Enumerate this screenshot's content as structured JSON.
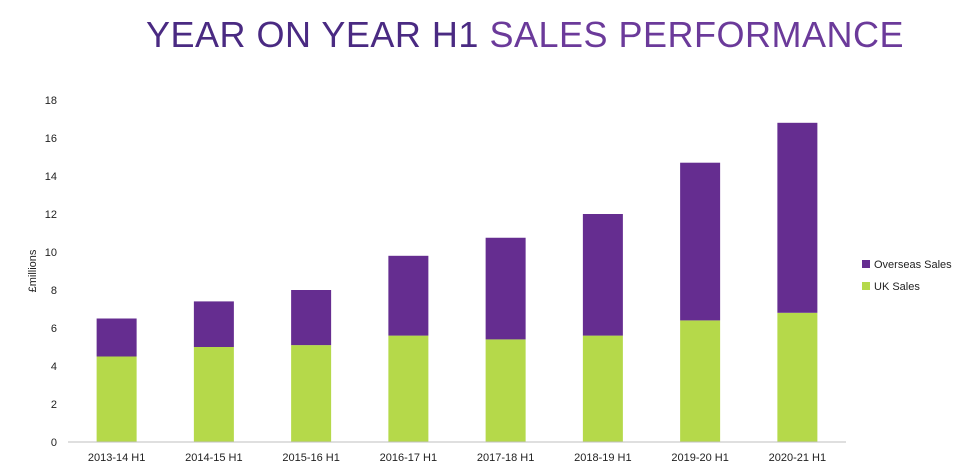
{
  "title_part1": "YEAR ON YEAR H1",
  "title_part2": "SALES PERFORMANCE",
  "colors": {
    "title_dark": "#4a2a82",
    "title_light": "#6b3a9a",
    "overseas": "#652d90",
    "uk": "#b5d94a"
  },
  "chart_data": {
    "type": "bar",
    "stacked": true,
    "categories": [
      "2013-14 H1",
      "2014-15 H1",
      "2015-16 H1",
      "2016-17 H1",
      "2017-18 H1",
      "2018-19 H1",
      "2019-20 H1",
      "2020-21 H1"
    ],
    "series": [
      {
        "name": "UK Sales",
        "values": [
          4.5,
          5.0,
          5.1,
          5.6,
          5.4,
          5.6,
          6.4,
          6.8
        ],
        "color": "#b5d94a"
      },
      {
        "name": "Overseas Sales",
        "values": [
          2.0,
          2.4,
          2.9,
          4.2,
          5.35,
          6.4,
          8.3,
          10.0
        ],
        "color": "#652d90"
      }
    ],
    "ylabel": "£millions",
    "ylim": [
      0,
      18
    ],
    "yticks": [
      "0",
      "2",
      "4",
      "6",
      "8",
      "10",
      "12",
      "14",
      "16",
      "18"
    ],
    "grid": false,
    "legend_position": "right",
    "legend": [
      "Overseas Sales",
      "UK Sales"
    ]
  }
}
